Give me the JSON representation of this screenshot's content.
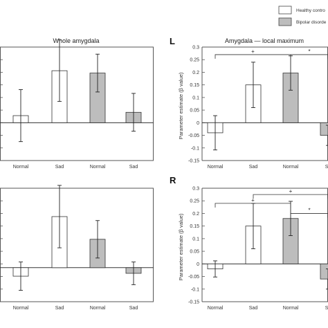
{
  "legend": [
    {
      "label": "Healthy contro",
      "color": "#ffffff"
    },
    {
      "label": "Bipolar disorde",
      "color": "#bdbdbd"
    }
  ],
  "colors": {
    "healthy": "#ffffff",
    "bipolar": "#bdbdbd",
    "axis": "#555555"
  },
  "chart_data": [
    {
      "id": "top-left",
      "type": "bar",
      "title": "Whole amygdala",
      "panel_label": "",
      "ylabel": "",
      "categories": [
        "Normal",
        "Sad",
        "Normal",
        "Sad"
      ],
      "groups": [
        "healthy",
        "healthy",
        "bipolar",
        "bipolar"
      ],
      "values": [
        0.015,
        0.11,
        0.105,
        0.022
      ],
      "errors": [
        0.055,
        0.065,
        0.04,
        0.04
      ],
      "ylim": [
        -0.08,
        0.16
      ],
      "yticks": [],
      "brackets": []
    },
    {
      "id": "top-right",
      "type": "bar",
      "title": "Amygdala — local maximum",
      "panel_label": "L",
      "ylabel": "Parameter estimate (β value)",
      "categories": [
        "Normal",
        "Sad",
        "Normal",
        "Sa"
      ],
      "groups": [
        "healthy",
        "healthy",
        "bipolar",
        "bipolar"
      ],
      "values": [
        -0.04,
        0.15,
        0.197,
        -0.05
      ],
      "errors": [
        0.068,
        0.09,
        0.068,
        0.04
      ],
      "ylim": [
        -0.15,
        0.3
      ],
      "yticks": [
        "-0.15",
        "-0.1",
        "-0.05",
        "0",
        "0.05",
        "0.1",
        "0.15",
        "0.2",
        "0.25",
        "0.3"
      ],
      "brackets": [
        {
          "from": 0,
          "to": 2,
          "y": 0.27,
          "label": "+"
        },
        {
          "from": 2,
          "to": 3.6,
          "y": 0.27,
          "label": "*"
        }
      ]
    },
    {
      "id": "bottom-left",
      "type": "bar",
      "title": "",
      "panel_label": "",
      "ylabel": "",
      "categories": [
        "Normal",
        "Sad",
        "Normal",
        "Sad"
      ],
      "groups": [
        "healthy",
        "healthy",
        "bipolar",
        "bipolar"
      ],
      "values": [
        -0.015,
        0.09,
        0.05,
        -0.01
      ],
      "errors": [
        0.025,
        0.055,
        0.033,
        0.02
      ],
      "ylim": [
        -0.06,
        0.14
      ],
      "yticks": [],
      "brackets": []
    },
    {
      "id": "bottom-right",
      "type": "bar",
      "title": "",
      "panel_label": "R",
      "ylabel": "Parameter estimate (β value)",
      "categories": [
        "Normal",
        "Sad",
        "Normal",
        "Sa"
      ],
      "groups": [
        "healthy",
        "healthy",
        "bipolar",
        "bipolar"
      ],
      "values": [
        -0.02,
        0.15,
        0.18,
        -0.06
      ],
      "errors": [
        0.032,
        0.09,
        0.068,
        0.04
      ],
      "ylim": [
        -0.15,
        0.3
      ],
      "yticks": [
        "-0.15",
        "-0.1",
        "-0.05",
        "0",
        "0.05",
        "0.1",
        "0.15",
        "0.2",
        "0.25",
        "0.3"
      ],
      "brackets": [
        {
          "from": 0,
          "to": 2,
          "y": 0.24,
          "label": "+"
        },
        {
          "from": 1,
          "to": 3.6,
          "y": 0.275,
          "label": "+"
        },
        {
          "from": 2,
          "to": 3.6,
          "y": 0.2,
          "label": "*"
        }
      ]
    }
  ]
}
